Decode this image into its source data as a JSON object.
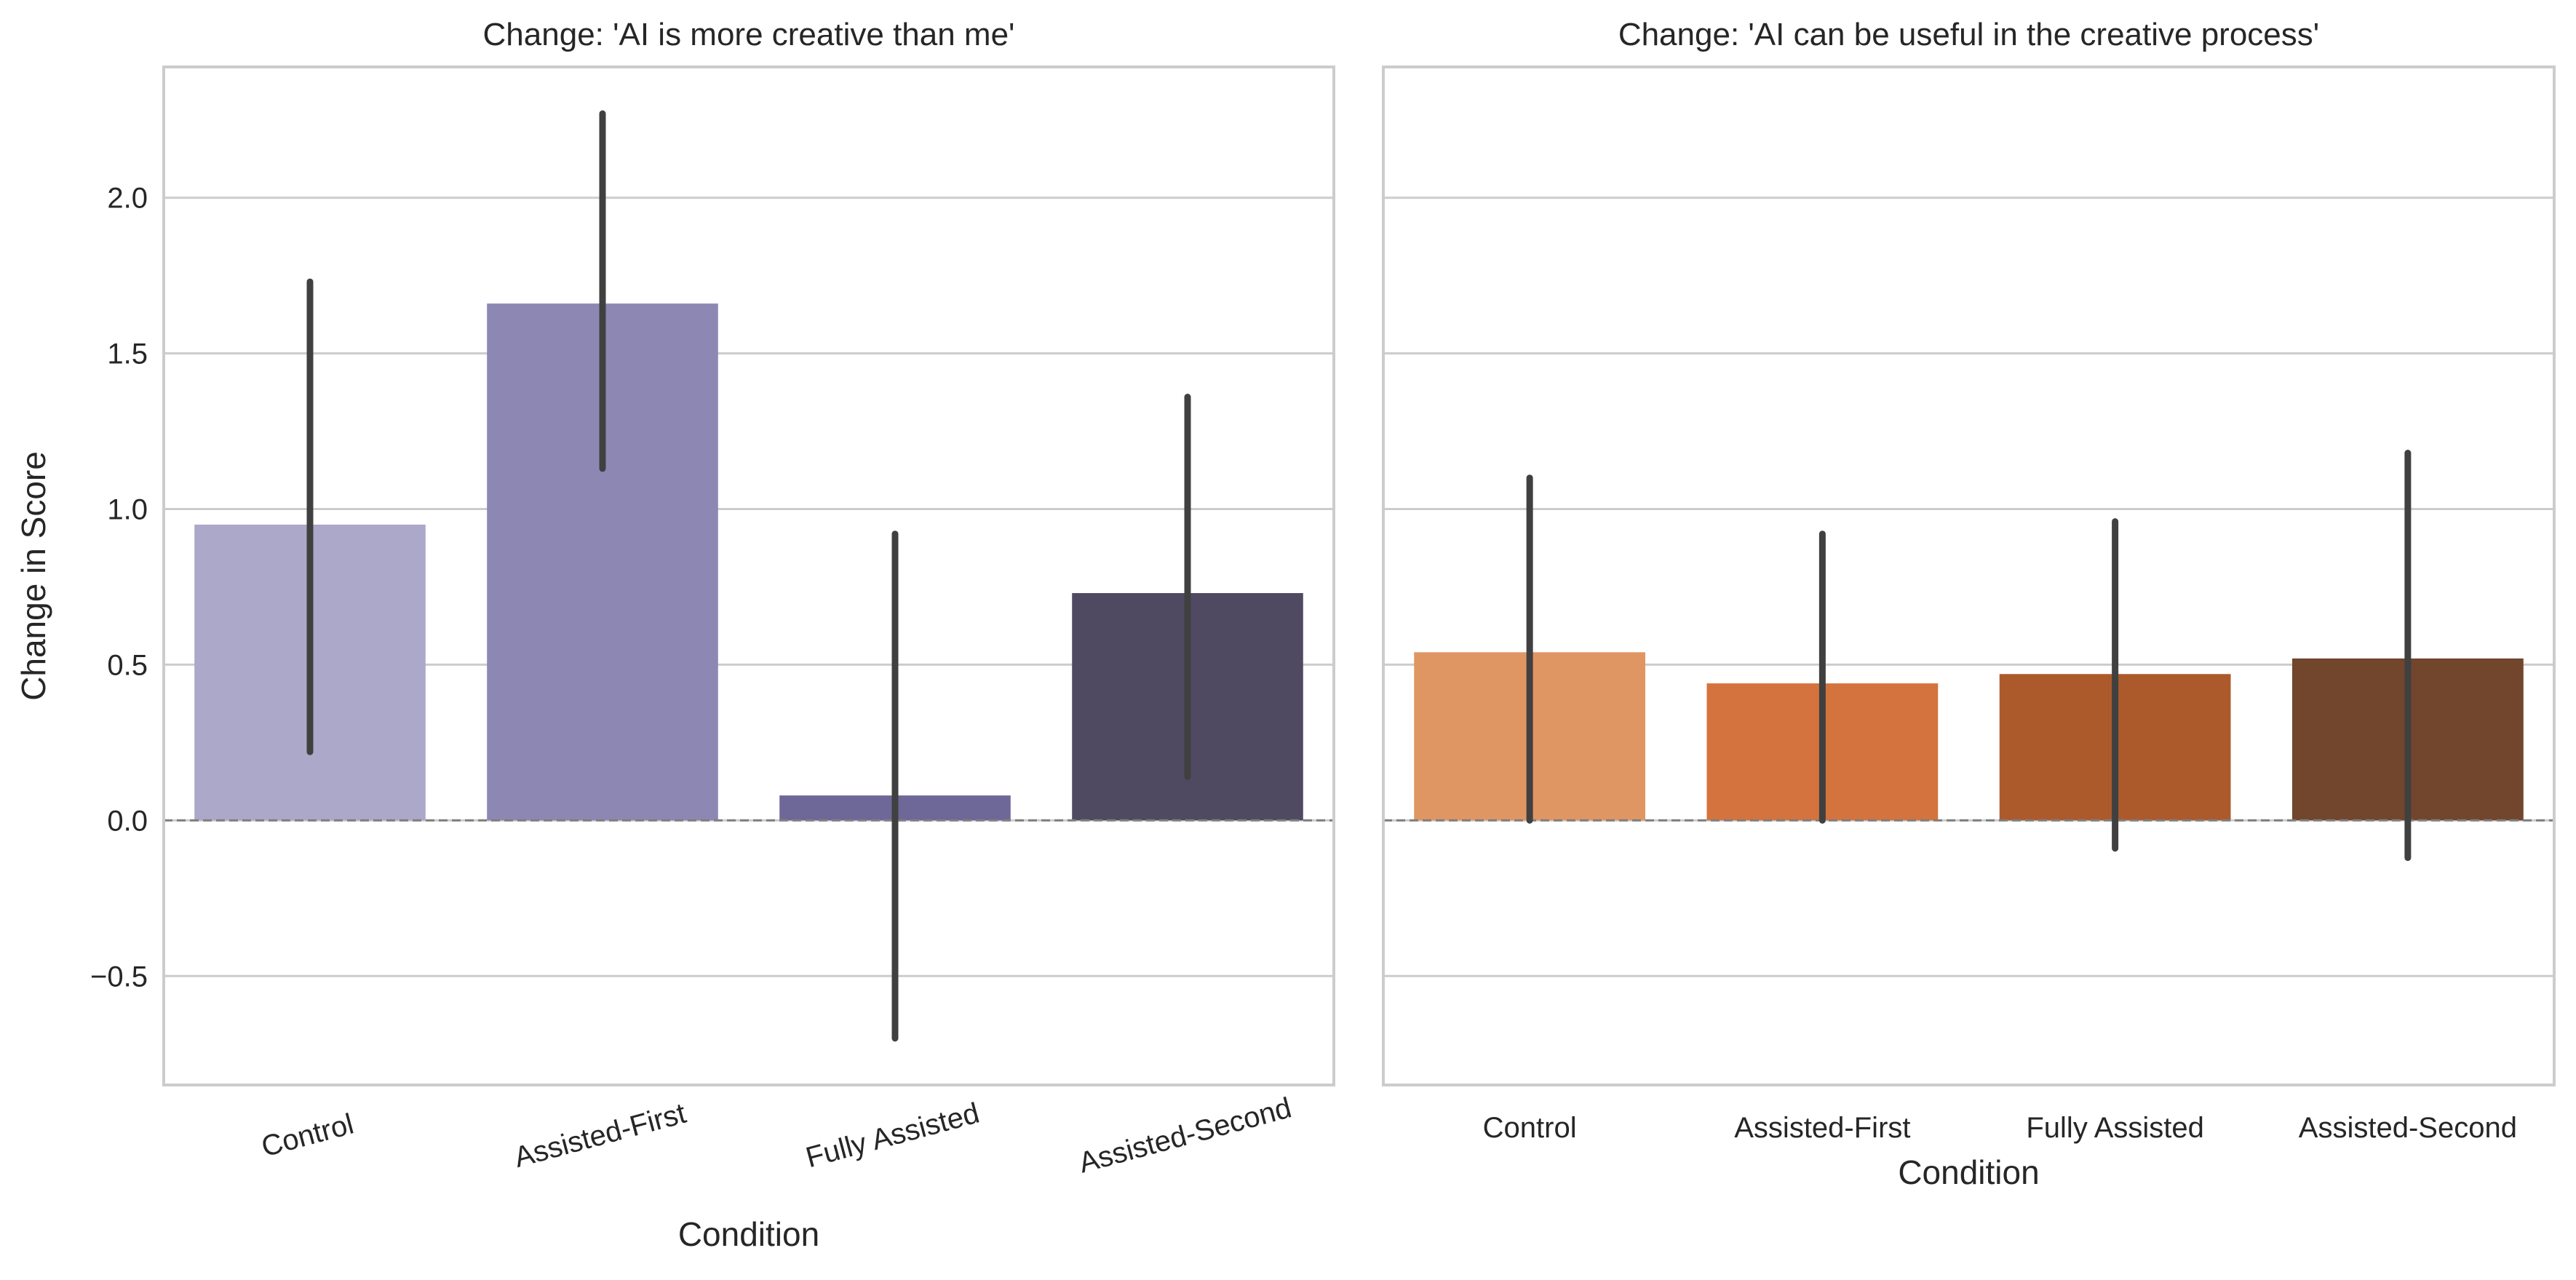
{
  "chart_data": [
    {
      "type": "bar",
      "title": "Change: 'AI is more creative than me'",
      "xlabel": "Condition",
      "ylabel": "Change in Score",
      "categories": [
        "Control",
        "Assisted-First",
        "Fully Assisted",
        "Assisted-Second"
      ],
      "values": [
        0.95,
        1.66,
        0.08,
        0.73
      ],
      "error_bars": [
        [
          0.22,
          1.73
        ],
        [
          1.13,
          2.27
        ],
        [
          -0.7,
          0.92
        ],
        [
          0.14,
          1.36
        ]
      ],
      "colors": [
        "#aba8c9",
        "#8c87b3",
        "#6d6898",
        "#4f4a62"
      ],
      "ylim": [
        -0.85,
        2.42
      ],
      "yticks": [
        "−0.5",
        "0.0",
        "0.5",
        "1.0",
        "1.5",
        "2.0"
      ],
      "ytick_values": [
        -0.5,
        0.0,
        0.5,
        1.0,
        1.5,
        2.0
      ],
      "reference_line": 0,
      "grid": "horizontal",
      "xtick_rotation": "rotated"
    },
    {
      "type": "bar",
      "title": "Change: 'AI can be useful in the creative process'",
      "xlabel": "Condition",
      "ylabel": "",
      "categories": [
        "Control",
        "Assisted-First",
        "Fully Assisted",
        "Assisted-Second"
      ],
      "values": [
        0.54,
        0.44,
        0.47,
        0.52
      ],
      "error_bars": [
        [
          0.0,
          1.1
        ],
        [
          0.0,
          0.92
        ],
        [
          -0.09,
          0.96
        ],
        [
          -0.12,
          1.18
        ]
      ],
      "colors": [
        "#e09663",
        "#d4733d",
        "#ac5a2c",
        "#72452d"
      ],
      "ylim": [
        -0.85,
        2.42
      ],
      "yticks": [],
      "ytick_values": [
        -0.5,
        0.0,
        0.5,
        1.0,
        1.5,
        2.0
      ],
      "reference_line": 0,
      "grid": "horizontal",
      "xtick_rotation": "none"
    }
  ]
}
